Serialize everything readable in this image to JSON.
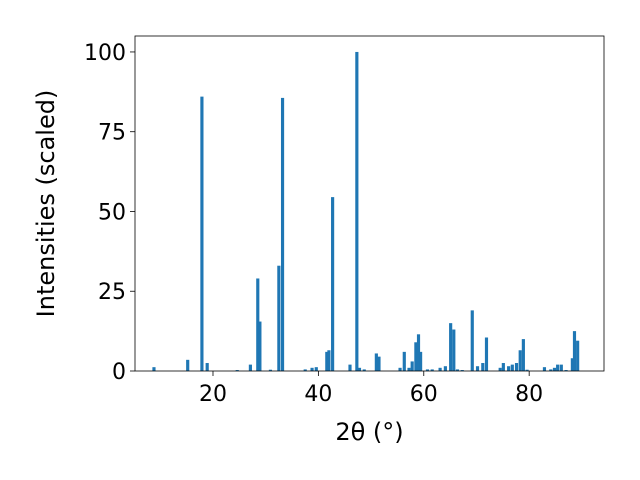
{
  "chart_data": {
    "type": "bar",
    "title": "",
    "xlabel": "2θ (°)",
    "ylabel": "Intensities (scaled)",
    "xlim": [
      5.2,
      94.2
    ],
    "ylim": [
      0,
      105
    ],
    "xticks": [
      20,
      40,
      60,
      80
    ],
    "yticks": [
      0,
      25,
      50,
      75,
      100
    ],
    "xtick_labels": [
      "20",
      "40",
      "60",
      "80"
    ],
    "ytick_labels": [
      "0",
      "25",
      "50",
      "75",
      "100"
    ],
    "bar_width": 0.6,
    "grid": false,
    "color": "#1f77b4",
    "series": [
      {
        "x": [
          8.8,
          15.2,
          17.9,
          18.9,
          24.6,
          27.1,
          28.5,
          28.9,
          30.9,
          32.5,
          33.2,
          37.5,
          38.8,
          39.6,
          41.6,
          42.0,
          42.7,
          46.0,
          47.3,
          47.8,
          48.7,
          51.0,
          51.5,
          55.5,
          56.3,
          57.2,
          57.8,
          58.5,
          59.0,
          59.4,
          60.7,
          61.6,
          63.1,
          64.1,
          65.1,
          65.7,
          66.4,
          67.3,
          69.2,
          70.2,
          71.2,
          71.9,
          74.5,
          75.1,
          76.1,
          76.8,
          77.6,
          78.3,
          78.9,
          79.6,
          82.9,
          84.1,
          84.8,
          85.4,
          86.1,
          87.0,
          88.2,
          88.6,
          89.2
        ],
        "values": [
          1.2,
          3.5,
          86.0,
          2.5,
          0.3,
          2.0,
          29.0,
          15.5,
          0.4,
          33.0,
          85.6,
          0.5,
          1.0,
          1.2,
          6.0,
          6.5,
          54.5,
          2.0,
          100.0,
          1.0,
          0.5,
          5.5,
          4.5,
          1.0,
          6.0,
          1.0,
          3.0,
          9.0,
          11.5,
          6.0,
          0.5,
          0.5,
          1.0,
          1.5,
          15.0,
          13.0,
          0.5,
          0.3,
          19.0,
          1.5,
          2.5,
          10.5,
          1.0,
          2.5,
          1.5,
          2.0,
          2.5,
          6.5,
          10.0,
          0.4,
          1.2,
          0.5,
          1.0,
          2.0,
          2.0,
          0.3,
          4.0,
          12.5,
          9.5
        ]
      }
    ]
  }
}
